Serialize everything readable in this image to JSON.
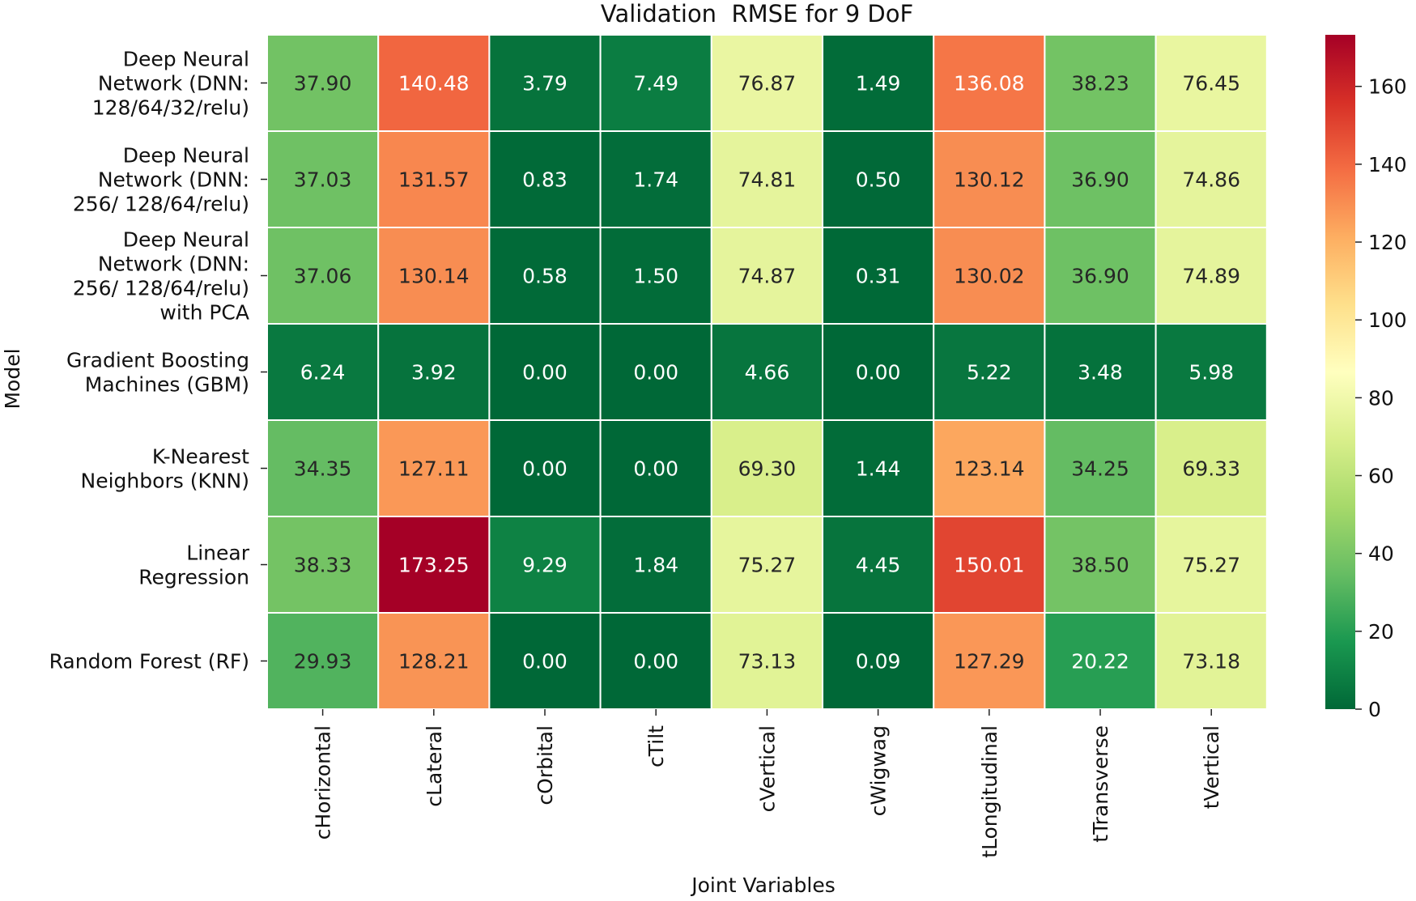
{
  "chart_data": {
    "type": "heatmap",
    "title": "Validation  RMSE for 9 DoF",
    "xlabel": "Joint Variables",
    "ylabel": "Model",
    "columns": [
      "cHorizontal",
      "cLateral",
      "cOrbital",
      "cTilt",
      "cVertical",
      "cWigwag",
      "tLongitudinal",
      "tTransverse",
      "tVertical"
    ],
    "rows": [
      {
        "label_lines": [
          "Deep Neural",
          "Network (DNN:",
          "128/64/32/relu)"
        ],
        "values": [
          "37.90",
          "140.48",
          "3.79",
          "7.49",
          "76.87",
          "1.49",
          "136.08",
          "38.23",
          "76.45"
        ]
      },
      {
        "label_lines": [
          "Deep Neural",
          "Network (DNN:",
          "256/ 128/64/relu)"
        ],
        "values": [
          "37.03",
          "131.57",
          "0.83",
          "1.74",
          "74.81",
          "0.50",
          "130.12",
          "36.90",
          "74.86"
        ]
      },
      {
        "label_lines": [
          "Deep Neural",
          "Network (DNN:",
          "256/ 128/64/relu)",
          "with PCA"
        ],
        "values": [
          "37.06",
          "130.14",
          "0.58",
          "1.50",
          "74.87",
          "0.31",
          "130.02",
          "36.90",
          "74.89"
        ]
      },
      {
        "label_lines": [
          "Gradient Boosting",
          "Machines (GBM)"
        ],
        "values": [
          "6.24",
          "3.92",
          "0.00",
          "0.00",
          "4.66",
          "0.00",
          "5.22",
          "3.48",
          "5.98"
        ]
      },
      {
        "label_lines": [
          "K-Nearest",
          "Neighbors (KNN)"
        ],
        "values": [
          "34.35",
          "127.11",
          "0.00",
          "0.00",
          "69.30",
          "1.44",
          "123.14",
          "34.25",
          "69.33"
        ]
      },
      {
        "label_lines": [
          "Linear",
          "Regression"
        ],
        "values": [
          "38.33",
          "173.25",
          "9.29",
          "1.84",
          "75.27",
          "4.45",
          "150.01",
          "38.50",
          "75.27"
        ]
      },
      {
        "label_lines": [
          "Random Forest (RF)"
        ],
        "values": [
          "29.93",
          "128.21",
          "0.00",
          "0.00",
          "73.13",
          "0.09",
          "127.29",
          "20.22",
          "73.18"
        ]
      }
    ],
    "colorbar": {
      "colormap": "RdYlGn_r",
      "range": [
        0,
        173.25
      ],
      "ticks": [
        "0",
        "20",
        "40",
        "60",
        "80",
        "100",
        "120",
        "140",
        "160"
      ]
    },
    "grid_lines": "white",
    "annotations": true
  }
}
